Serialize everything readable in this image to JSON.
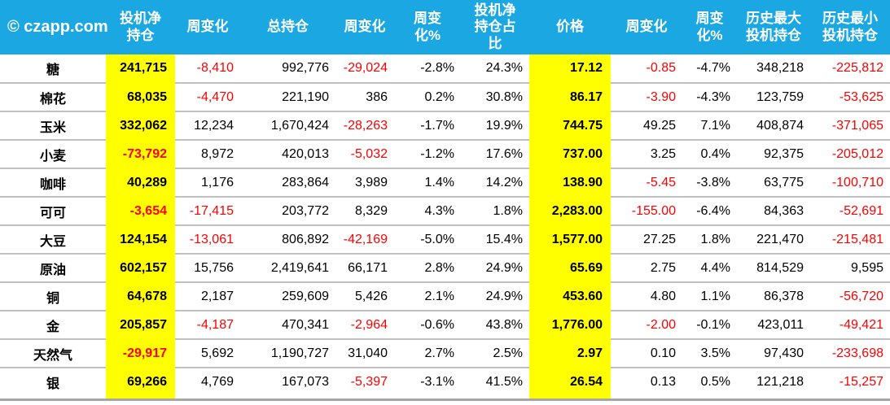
{
  "brand": "© czapp.com",
  "colors": {
    "header_bg": "#1BA7E1",
    "highlight": "#FFFF00",
    "negative": "#FF0000",
    "grid": "#C0C0C0",
    "bottom_bar": "#A6A6A6",
    "header_text": "#FFFFFF",
    "body_text": "#000000"
  },
  "chart_data": {
    "type": "table",
    "title": "© czapp.com",
    "columns": [
      {
        "label": "© czapp.com",
        "yellow": false,
        "bold": true,
        "red_negatives": false
      },
      {
        "label": "投机净\n持仓",
        "yellow": true,
        "bold": true,
        "red_negatives": true
      },
      {
        "label": "周变化",
        "yellow": false,
        "bold": false,
        "red_negatives": true
      },
      {
        "label": "总持仓",
        "yellow": false,
        "bold": false,
        "red_negatives": true
      },
      {
        "label": "周变化",
        "yellow": false,
        "bold": false,
        "red_negatives": true
      },
      {
        "label": "周变\n化%",
        "yellow": false,
        "bold": false,
        "red_negatives": false
      },
      {
        "label": "投机净\n持仓占\n比",
        "yellow": false,
        "bold": false,
        "red_negatives": false
      },
      {
        "label": "价格",
        "yellow": true,
        "bold": true,
        "red_negatives": false
      },
      {
        "label": "周变化",
        "yellow": false,
        "bold": false,
        "red_negatives": true
      },
      {
        "label": "周变\n化%",
        "yellow": false,
        "bold": false,
        "red_negatives": false
      },
      {
        "label": "历史最大\n投机持仓",
        "yellow": false,
        "bold": false,
        "red_negatives": true
      },
      {
        "label": "历史最小\n投机持仓",
        "yellow": false,
        "bold": false,
        "red_negatives": true
      }
    ],
    "rows": [
      {
        "name": "糖",
        "values": [
          "241,715",
          "-8,410",
          "992,776",
          "-29,024",
          "-2.8%",
          "24.3%",
          "17.12",
          "-0.85",
          "-4.7%",
          "348,218",
          "-225,812"
        ]
      },
      {
        "name": "棉花",
        "values": [
          "68,035",
          "-4,470",
          "221,190",
          "386",
          "0.2%",
          "30.8%",
          "86.17",
          "-3.90",
          "-4.3%",
          "123,759",
          "-53,625"
        ]
      },
      {
        "name": "玉米",
        "values": [
          "332,062",
          "12,234",
          "1,670,424",
          "-28,263",
          "-1.7%",
          "19.9%",
          "744.75",
          "49.25",
          "7.1%",
          "408,874",
          "-371,065"
        ]
      },
      {
        "name": "小麦",
        "values": [
          "-73,792",
          "8,972",
          "420,013",
          "-5,032",
          "-1.2%",
          "17.6%",
          "737.00",
          "3.25",
          "0.4%",
          "92,375",
          "-205,012"
        ]
      },
      {
        "name": "咖啡",
        "values": [
          "40,289",
          "1,176",
          "283,864",
          "3,989",
          "1.4%",
          "14.2%",
          "138.90",
          "-5.45",
          "-3.8%",
          "63,775",
          "-100,710"
        ]
      },
      {
        "name": "可可",
        "values": [
          "-3,654",
          "-17,415",
          "203,772",
          "8,329",
          "4.3%",
          "1.8%",
          "2,283.00",
          "-155.00",
          "-6.4%",
          "84,363",
          "-52,691"
        ]
      },
      {
        "name": "大豆",
        "values": [
          "124,154",
          "-13,061",
          "806,892",
          "-42,169",
          "-5.0%",
          "15.4%",
          "1,577.00",
          "27.25",
          "1.8%",
          "221,470",
          "-215,481"
        ]
      },
      {
        "name": "原油",
        "values": [
          "602,157",
          "15,756",
          "2,419,641",
          "66,171",
          "2.8%",
          "24.9%",
          "65.69",
          "2.75",
          "4.4%",
          "814,529",
          "9,595"
        ]
      },
      {
        "name": "铜",
        "values": [
          "64,678",
          "2,187",
          "259,609",
          "5,426",
          "2.1%",
          "24.9%",
          "453.60",
          "4.80",
          "1.1%",
          "86,378",
          "-56,720"
        ]
      },
      {
        "name": "金",
        "values": [
          "205,857",
          "-4,187",
          "470,341",
          "-2,964",
          "-0.6%",
          "43.8%",
          "1,776.00",
          "-2.00",
          "-0.1%",
          "423,011",
          "-49,421"
        ]
      },
      {
        "name": "天然气",
        "values": [
          "-29,917",
          "5,692",
          "1,190,727",
          "31,040",
          "2.7%",
          "2.5%",
          "2.97",
          "0.10",
          "3.5%",
          "97,430",
          "-233,698"
        ]
      },
      {
        "name": "银",
        "values": [
          "69,266",
          "4,769",
          "167,073",
          "-5,397",
          "-3.1%",
          "41.5%",
          "26.54",
          "0.13",
          "0.5%",
          "121,218",
          "-15,257"
        ]
      }
    ]
  }
}
